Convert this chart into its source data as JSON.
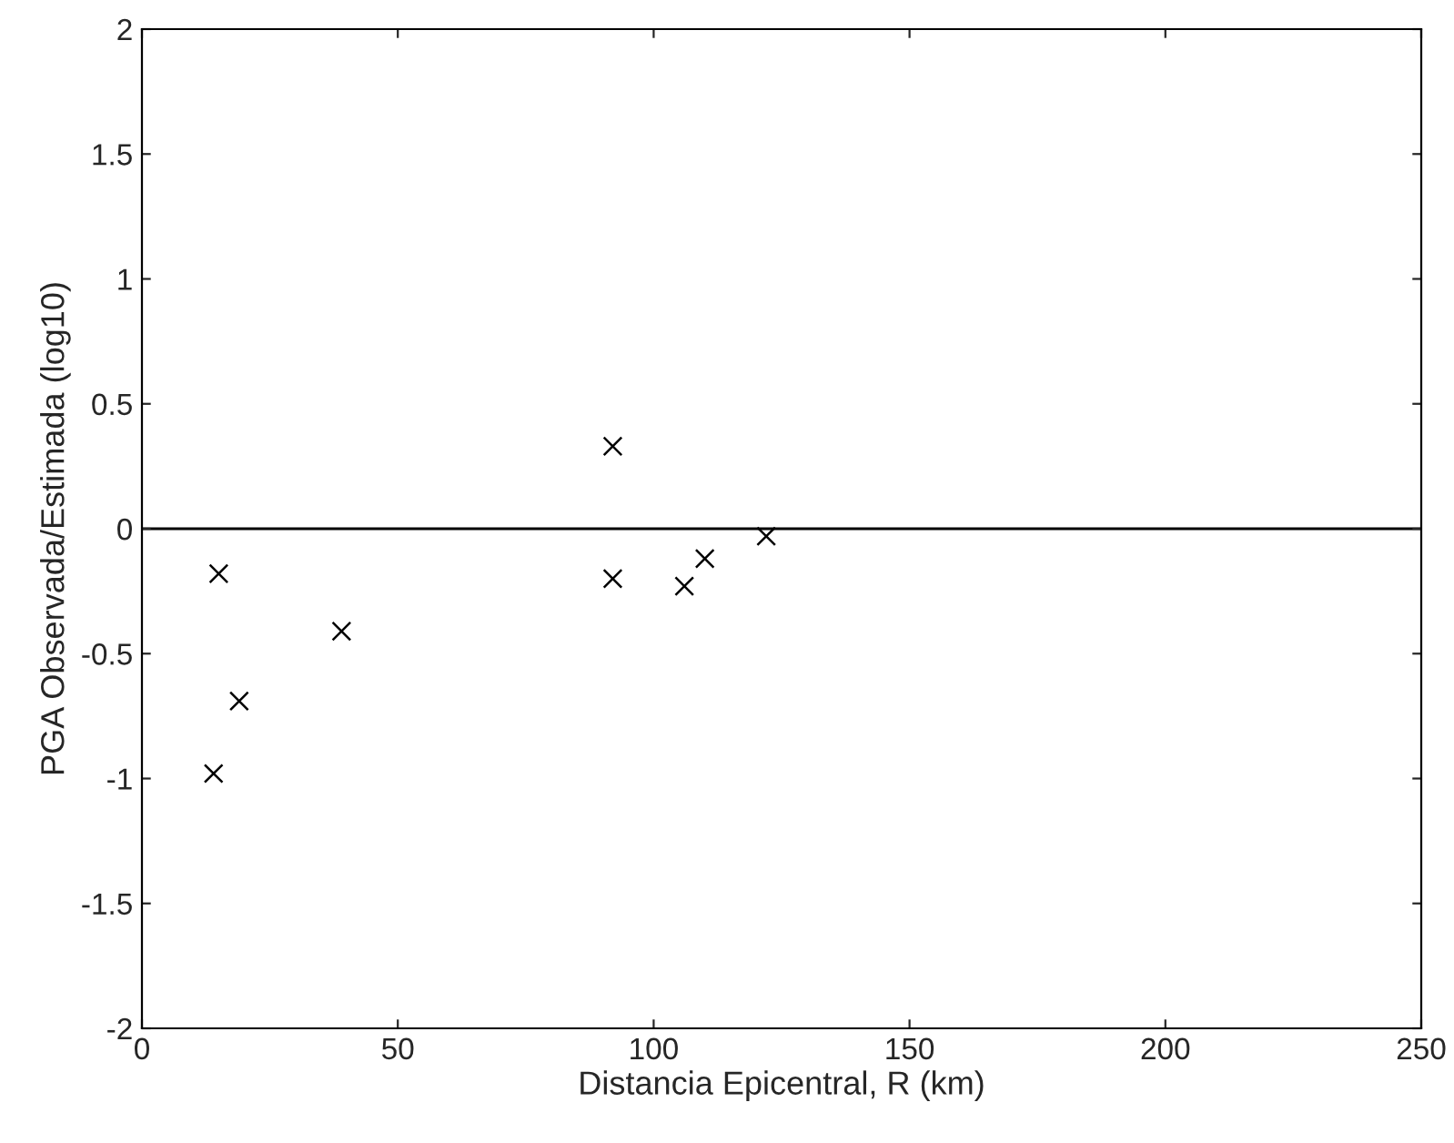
{
  "chart_data": {
    "type": "scatter",
    "xlabel": "Distancia Epicentral, R (km)",
    "ylabel": "PGA Observada/Estimada (log10)",
    "x": [
      14,
      15,
      19,
      39,
      92,
      92,
      106,
      110,
      122
    ],
    "values": [
      -0.98,
      -0.18,
      -0.69,
      -0.41,
      0.33,
      -0.2,
      -0.23,
      -0.12,
      -0.03
    ],
    "color": "#000000",
    "marker": "cross",
    "xlim": [
      0,
      250
    ],
    "xticks": [
      0,
      50,
      100,
      150,
      200,
      250
    ],
    "ylim": [
      -2,
      2
    ],
    "yticks": [
      -2,
      -1.5,
      -1,
      -0.5,
      0,
      0.5,
      1,
      1.5,
      2
    ],
    "ref_lines": [
      {
        "axis": "y",
        "value": 0,
        "label": null,
        "color": "#000000"
      }
    ]
  }
}
